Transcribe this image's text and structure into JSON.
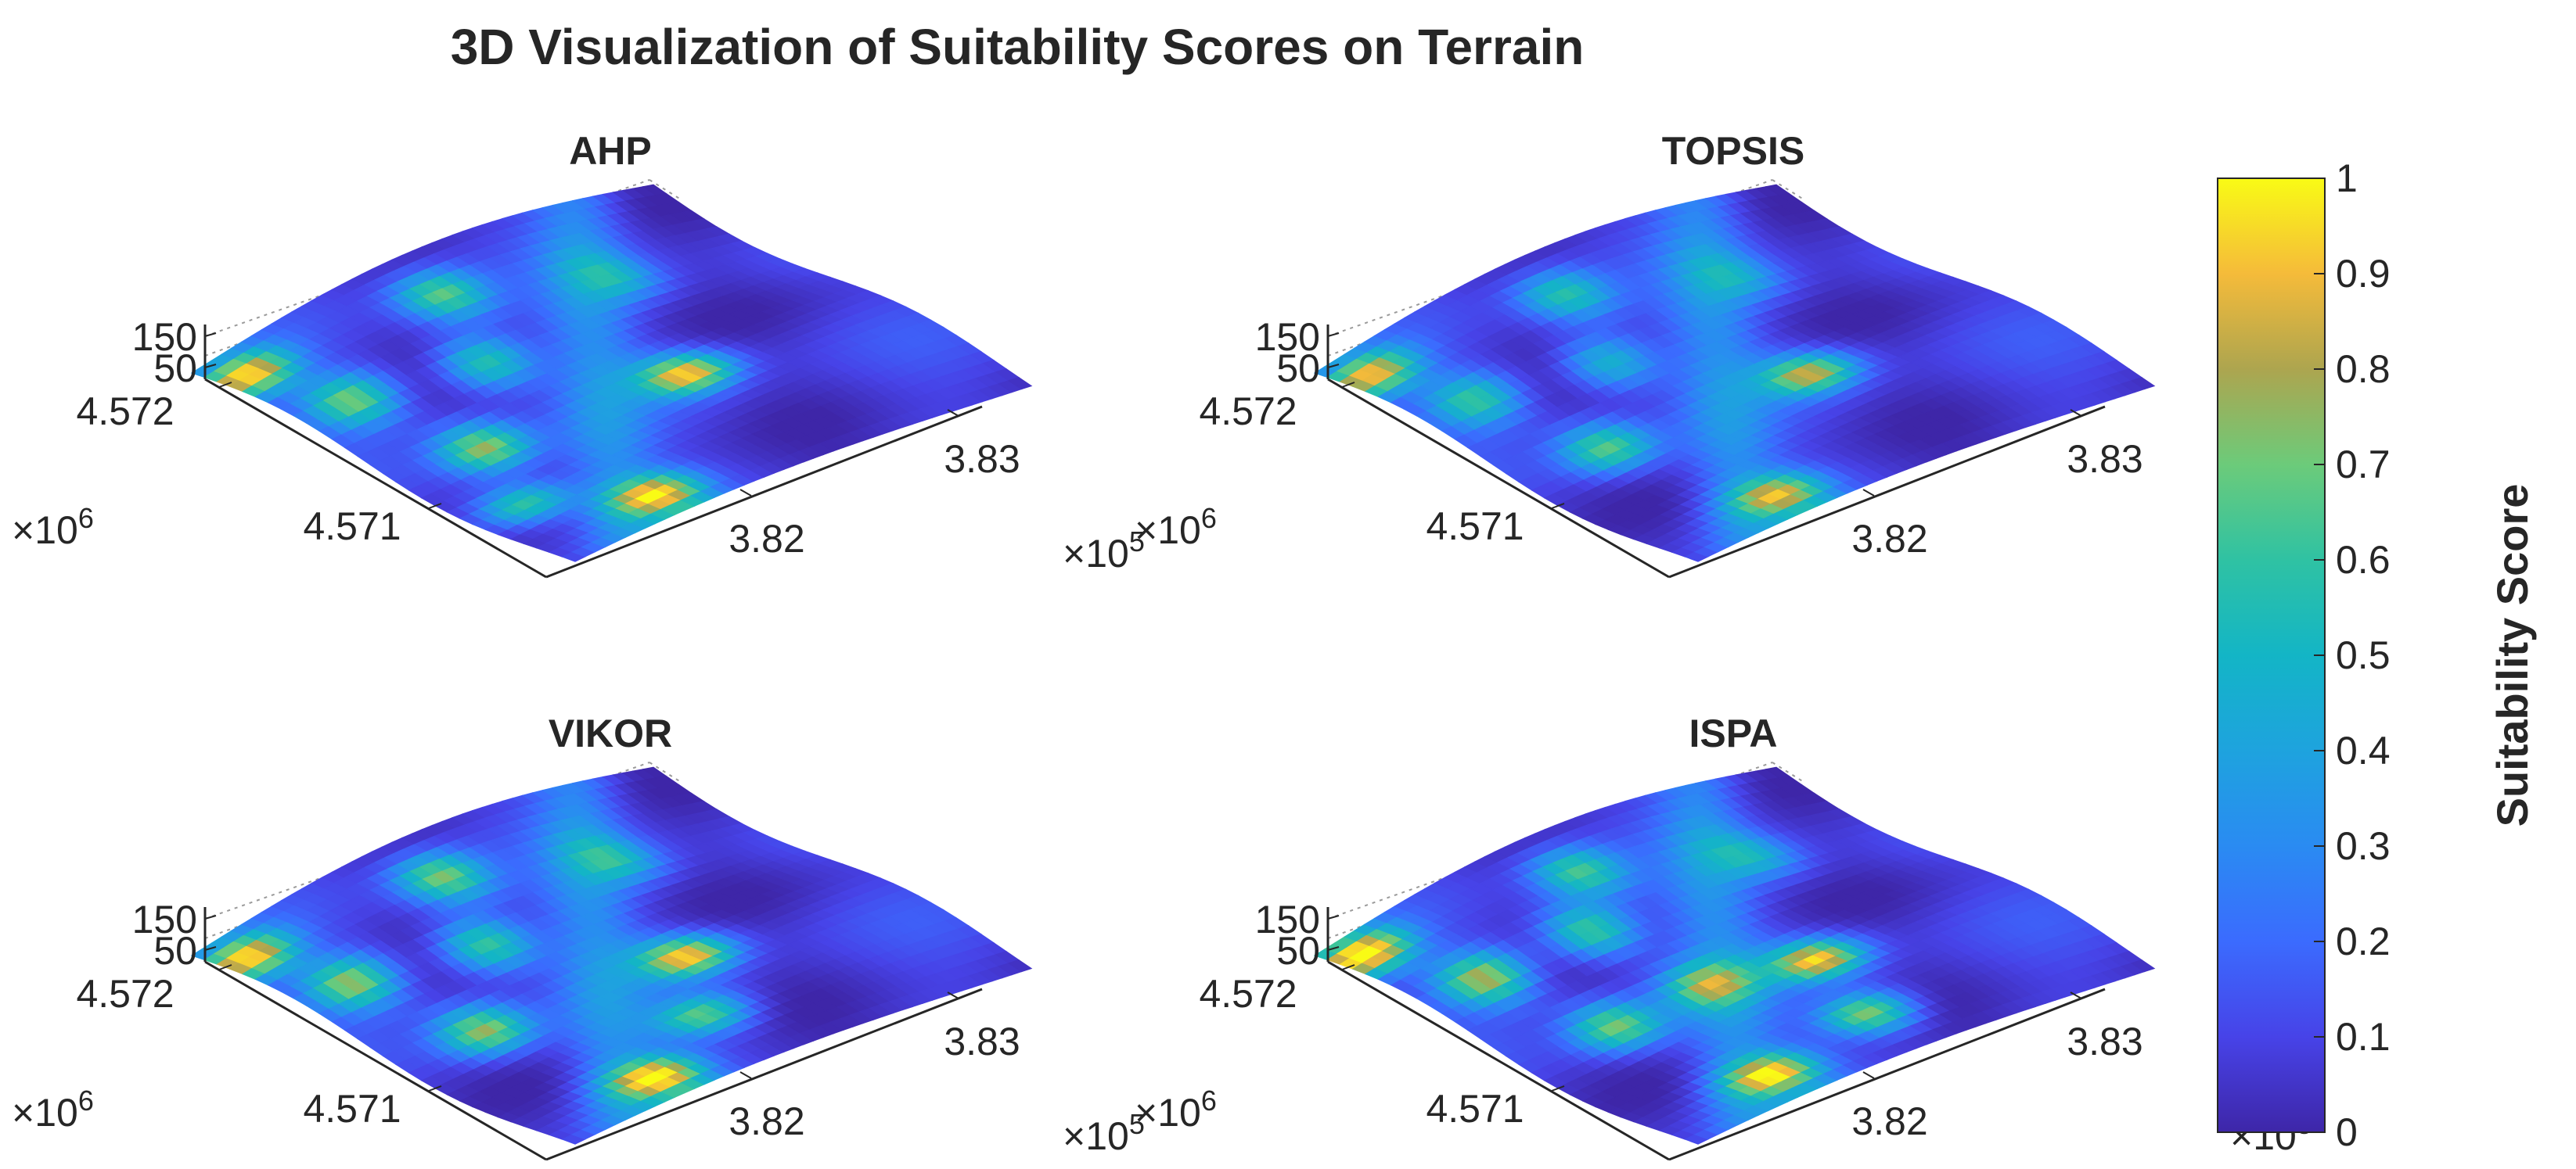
{
  "chart_data": {
    "type": "surface3d",
    "title": "3D Visualization of Suitability Scores on Terrain",
    "colorbar": {
      "label": "Suitability Score",
      "limits": [
        0,
        1
      ],
      "ticks": [
        "0",
        "0.1",
        "0.2",
        "0.3",
        "0.4",
        "0.5",
        "0.6",
        "0.7",
        "0.8",
        "0.9",
        "1"
      ],
      "colormap": [
        "#3e26a8",
        "#4743e8",
        "#3b6bfe",
        "#2a8bf2",
        "#1ea3de",
        "#13b5c6",
        "#2fc2a3",
        "#6ccb7a",
        "#ada54f",
        "#f5bb3a",
        "#f9fb15"
      ]
    },
    "panels": [
      {
        "name": "AHP",
        "z_ticks": [
          "150",
          "50"
        ],
        "y_ticks": [
          "4.572",
          "4.571"
        ],
        "y_exponent": {
          "base": "×10",
          "exp": "6"
        },
        "x_ticks": [
          "3.83",
          "3.82"
        ],
        "x_exponent": {
          "base": "×10",
          "exp": "5"
        },
        "hotspots": [
          {
            "u": 0.04,
            "v": 0.1,
            "value": 0.85
          },
          {
            "u": 0.1,
            "v": 0.3,
            "value": 0.65
          },
          {
            "u": 0.25,
            "v": 0.92,
            "value": 0.8
          },
          {
            "u": 0.18,
            "v": 0.55,
            "value": 0.7
          },
          {
            "u": 0.58,
            "v": 0.6,
            "value": 0.85
          },
          {
            "u": 0.35,
            "v": 0.35,
            "value": 0.55
          },
          {
            "u": 0.42,
            "v": 0.15,
            "value": 0.6
          },
          {
            "u": 0.1,
            "v": 0.75,
            "value": 0.6
          },
          {
            "u": 0.72,
            "v": 0.25,
            "value": 0.3
          }
        ]
      },
      {
        "name": "TOPSIS",
        "z_ticks": [
          "150",
          "50"
        ],
        "y_ticks": [
          "4.572",
          "4.571"
        ],
        "y_exponent": {
          "base": "×10",
          "exp": "6"
        },
        "x_ticks": [
          "3.83",
          "3.82"
        ],
        "x_exponent": {
          "base": "×10",
          "exp": "5"
        },
        "hotspots": [
          {
            "u": 0.04,
            "v": 0.1,
            "value": 0.8
          },
          {
            "u": 0.1,
            "v": 0.3,
            "value": 0.55
          },
          {
            "u": 0.25,
            "v": 0.92,
            "value": 0.7
          },
          {
            "u": 0.18,
            "v": 0.55,
            "value": 0.6
          },
          {
            "u": 0.58,
            "v": 0.6,
            "value": 0.75
          },
          {
            "u": 0.35,
            "v": 0.35,
            "value": 0.45
          },
          {
            "u": 0.42,
            "v": 0.15,
            "value": 0.5
          },
          {
            "u": 0.72,
            "v": 0.25,
            "value": 0.25
          }
        ]
      },
      {
        "name": "VIKOR",
        "z_ticks": [
          "150",
          "50"
        ],
        "y_ticks": [
          "4.572",
          "4.571"
        ],
        "y_exponent": {
          "base": "×10",
          "exp": "6"
        },
        "x_ticks": [
          "3.83",
          "3.82"
        ],
        "x_exponent": {
          "base": "×10",
          "exp": "5"
        },
        "hotspots": [
          {
            "u": 0.04,
            "v": 0.1,
            "value": 0.85
          },
          {
            "u": 0.1,
            "v": 0.3,
            "value": 0.7
          },
          {
            "u": 0.25,
            "v": 0.92,
            "value": 0.85
          },
          {
            "u": 0.18,
            "v": 0.55,
            "value": 0.7
          },
          {
            "u": 0.58,
            "v": 0.6,
            "value": 0.85
          },
          {
            "u": 0.35,
            "v": 0.35,
            "value": 0.6
          },
          {
            "u": 0.42,
            "v": 0.15,
            "value": 0.65
          },
          {
            "u": 0.45,
            "v": 0.8,
            "value": 0.6
          },
          {
            "u": 0.72,
            "v": 0.25,
            "value": 0.35
          }
        ]
      },
      {
        "name": "ISPA",
        "z_ticks": [
          "150",
          "50"
        ],
        "y_ticks": [
          "4.572",
          "4.571"
        ],
        "y_exponent": {
          "base": "×10",
          "exp": "6"
        },
        "x_ticks": [
          "3.83",
          "3.82"
        ],
        "x_exponent": {
          "base": "×10",
          "exp": "5"
        },
        "hotspots": [
          {
            "u": 0.04,
            "v": 0.08,
            "value": 0.95
          },
          {
            "u": 0.12,
            "v": 0.3,
            "value": 0.75
          },
          {
            "u": 0.25,
            "v": 0.9,
            "value": 0.8
          },
          {
            "u": 0.2,
            "v": 0.55,
            "value": 0.65
          },
          {
            "u": 0.58,
            "v": 0.62,
            "value": 0.85
          },
          {
            "u": 0.35,
            "v": 0.3,
            "value": 0.6
          },
          {
            "u": 0.45,
            "v": 0.15,
            "value": 0.55
          },
          {
            "u": 0.5,
            "v": 0.85,
            "value": 0.7
          },
          {
            "u": 0.4,
            "v": 0.55,
            "value": 0.55
          },
          {
            "u": 0.75,
            "v": 0.25,
            "value": 0.35
          }
        ]
      }
    ]
  }
}
